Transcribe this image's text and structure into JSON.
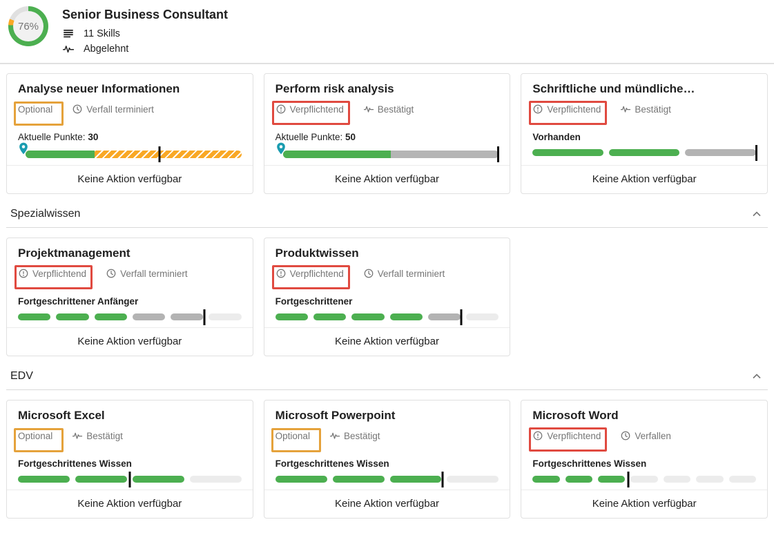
{
  "colors": {
    "green": "#4caf50",
    "striped_orange": "#f9a825",
    "gray_mid": "#b3b3b3",
    "gray_light": "#ececec",
    "annotation_orange": "#e5a23b",
    "annotation_red": "#e04a40",
    "pin_teal": "#1a9cb0"
  },
  "header": {
    "progress_percent": "76%",
    "ring": {
      "green_pct": 76,
      "orange_pct": 5,
      "track_pct": 19
    },
    "title": "Senior Business Consultant",
    "skills_icon": "skills-list-icon",
    "skills_count": "11 Skills",
    "status_icon": "pulse-icon",
    "status": "Abgelehnt"
  },
  "sections": [
    {
      "title": "",
      "cards": [
        {
          "title": "Analyse neuer Informationen",
          "requirement": {
            "label": "Optional",
            "icon": null,
            "annotation": "orange"
          },
          "status": {
            "label": "Verfall terminiert",
            "icon": "clock-icon"
          },
          "level_prefix": "Aktuelle Punkte:",
          "level_value": "30",
          "bar": {
            "type": "continuous",
            "pin": true,
            "fill_pct": 32,
            "rest": "striped",
            "marker_pct": 62
          },
          "action": "Keine Aktion verfügbar"
        },
        {
          "title": "Perform risk analysis",
          "requirement": {
            "label": "Verpflichtend",
            "icon": "alert-circle-icon",
            "annotation": "red"
          },
          "status": {
            "label": "Bestätigt",
            "icon": "pulse-icon"
          },
          "level_prefix": "Aktuelle Punkte:",
          "level_value": "50",
          "bar": {
            "type": "continuous",
            "pin": true,
            "fill_pct": 50,
            "rest": "solid",
            "marker_pct": 100
          },
          "action": "Keine Aktion verfügbar"
        },
        {
          "title": "Schriftliche und mündliche…",
          "requirement": {
            "label": "Verpflichtend",
            "icon": "alert-circle-icon",
            "annotation": "red"
          },
          "status": {
            "label": "Bestätigt",
            "icon": "pulse-icon"
          },
          "level_prefix": null,
          "level_value": "Vorhanden",
          "bar": {
            "type": "segments",
            "segments": [
              "green",
              "green",
              "gray_mid"
            ],
            "marker_after": 3
          },
          "action": "Keine Aktion verfügbar"
        }
      ]
    },
    {
      "title": "Spezialwissen",
      "collapse_icon": "chevron-up-icon",
      "cards": [
        {
          "title": "Projektmanagement",
          "requirement": {
            "label": "Verpflichtend",
            "icon": "alert-circle-icon",
            "annotation": "red"
          },
          "status": {
            "label": "Verfall terminiert",
            "icon": "clock-icon"
          },
          "level_prefix": null,
          "level_value": "Fortgeschrittener Anfänger",
          "bar": {
            "type": "segments",
            "segments": [
              "green",
              "green",
              "green",
              "gray_mid",
              "gray_mid",
              "gray_light"
            ],
            "marker_after": 5
          },
          "action": "Keine Aktion verfügbar"
        },
        {
          "title": "Produktwissen",
          "requirement": {
            "label": "Verpflichtend",
            "icon": "alert-circle-icon",
            "annotation": "red"
          },
          "status": {
            "label": "Verfall terminiert",
            "icon": "clock-icon"
          },
          "level_prefix": null,
          "level_value": "Fortgeschrittener",
          "bar": {
            "type": "segments",
            "segments": [
              "green",
              "green",
              "green",
              "green",
              "gray_mid",
              "gray_light"
            ],
            "marker_after": 5
          },
          "action": "Keine Aktion verfügbar"
        }
      ]
    },
    {
      "title": "EDV",
      "collapse_icon": "chevron-up-icon",
      "cards": [
        {
          "title": "Microsoft Excel",
          "requirement": {
            "label": "Optional",
            "icon": null,
            "annotation": "orange"
          },
          "status": {
            "label": "Bestätigt",
            "icon": "pulse-icon"
          },
          "level_prefix": null,
          "level_value": "Fortgeschrittenes Wissen",
          "bar": {
            "type": "segments",
            "segments": [
              "green",
              "green",
              "green",
              "gray_light"
            ],
            "marker_after": 2
          },
          "action": "Keine Aktion verfügbar"
        },
        {
          "title": "Microsoft Powerpoint",
          "requirement": {
            "label": "Optional",
            "icon": null,
            "annotation": "orange"
          },
          "status": {
            "label": "Bestätigt",
            "icon": "pulse-icon"
          },
          "level_prefix": null,
          "level_value": "Fortgeschrittenes Wissen",
          "bar": {
            "type": "segments",
            "segments": [
              "green",
              "green",
              "green",
              "gray_light"
            ],
            "marker_after": 3
          },
          "action": "Keine Aktion verfügbar"
        },
        {
          "title": "Microsoft Word",
          "requirement": {
            "label": "Verpflichtend",
            "icon": "alert-circle-icon",
            "annotation": "red"
          },
          "status": {
            "label": "Verfallen",
            "icon": "clock-icon"
          },
          "level_prefix": null,
          "level_value": "Fortgeschrittenes Wissen",
          "bar": {
            "type": "segments",
            "segments": [
              "green",
              "green",
              "green",
              "gray_light",
              "gray_light",
              "gray_light",
              "gray_light"
            ],
            "marker_after": 3
          },
          "action": "Keine Aktion verfügbar"
        }
      ]
    }
  ]
}
